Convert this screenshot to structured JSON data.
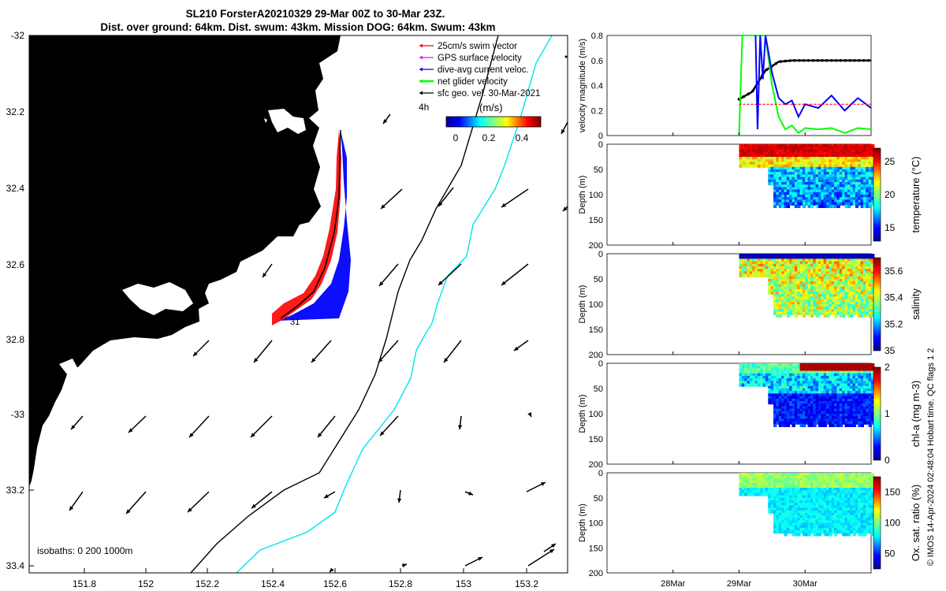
{
  "title_line1": "SL210 ForsterA20210329 29-Mar 00Z to 30-Mar 23Z.",
  "title_line2": "Dist. over ground: 64km. Dist. swum: 43km. Mission DOG: 64km. Swum: 43km",
  "map": {
    "lat_ticks": [
      "-32",
      "32.2",
      "32.4",
      "32.6",
      "32.8",
      "-33",
      "33.2",
      "33.4"
    ],
    "lon_ticks": [
      "151.8",
      "152",
      "152.2",
      "152.4",
      "152.6",
      "152.8",
      "153",
      "153.2"
    ],
    "legend": [
      {
        "label": "25cm/s swim vector",
        "color": "#ff0000"
      },
      {
        "label": "GPS surface velocity",
        "color": "#ff00ff"
      },
      {
        "label": "dive-avg current veloc.",
        "color": "#0000ff"
      },
      {
        "label": "net glider velocity",
        "color": "#00ff00"
      },
      {
        "label": "sfc geo. vel. 30-Mar-2021",
        "color": "#000000"
      }
    ],
    "colorbar_label": "(m/s)",
    "colorbar_prefix": "4h",
    "colorbar_ticks": [
      "0",
      "0.2",
      "0.4"
    ],
    "track_label": "31",
    "isobaths_text": "isobaths: 0   200  1000m",
    "land_color": "#f9c896"
  },
  "chart_data": [
    {
      "type": "line",
      "ylabel": "velocity magnitude (m/s)",
      "ylim": [
        0,
        0.8
      ],
      "yticks": [
        "0",
        "0.2",
        "0.4",
        "0.6",
        "0.8"
      ],
      "series": [
        {
          "color": "#000000",
          "x": [
            29.0,
            29.2,
            29.4,
            29.6,
            29.8,
            30.0,
            30.4,
            30.8,
            31.0
          ],
          "values": [
            0.29,
            0.35,
            0.52,
            0.59,
            0.6,
            0.6,
            0.6,
            0.6,
            0.6
          ]
        },
        {
          "color": "#00ff00",
          "x": [
            29.0,
            29.05,
            29.2,
            29.4,
            29.5,
            29.6,
            29.7,
            29.8,
            29.9,
            30.0,
            30.2,
            30.4,
            30.6,
            30.8,
            31.0
          ],
          "values": [
            0.0,
            0.8,
            0.8,
            0.8,
            0.4,
            0.15,
            0.05,
            0.08,
            0.02,
            0.06,
            0.05,
            0.06,
            0.02,
            0.06,
            0.05
          ]
        },
        {
          "color": "#0000ff",
          "x": [
            29.25,
            29.28,
            29.32,
            29.36,
            29.4,
            29.5,
            29.6,
            29.7,
            29.8,
            29.9,
            30.0,
            30.2,
            30.4,
            30.6,
            30.8,
            31.0
          ],
          "values": [
            0.8,
            0.05,
            0.8,
            0.45,
            0.8,
            0.5,
            0.3,
            0.25,
            0.28,
            0.15,
            0.25,
            0.22,
            0.32,
            0.2,
            0.3,
            0.22
          ]
        },
        {
          "color": "#ff0000",
          "x": [
            29.0,
            31.0
          ],
          "values": [
            0.25,
            0.25
          ]
        }
      ]
    },
    {
      "type": "heatmap",
      "ylabel": "Depth (m)",
      "colorbar_label": "temperature (°C)",
      "clim": [
        13,
        27
      ],
      "cticks": [
        "15",
        "20",
        "25"
      ]
    },
    {
      "type": "heatmap",
      "ylabel": "Depth (m)",
      "colorbar_label": "salinity",
      "clim": [
        35,
        35.7
      ],
      "cticks": [
        "35",
        "35.2",
        "35.4",
        "35.6"
      ]
    },
    {
      "type": "heatmap",
      "ylabel": "Depth (m)",
      "colorbar_label": "chl-a (mg m-3)",
      "clim": [
        0,
        2
      ],
      "cticks": [
        "0",
        "1",
        "2"
      ]
    },
    {
      "type": "heatmap",
      "ylabel": "Depth (m)",
      "colorbar_label": "Ox. sat. ratio (%)",
      "clim": [
        25,
        175
      ],
      "cticks": [
        "50",
        "100",
        "150"
      ]
    }
  ],
  "depth_ticks": [
    "0",
    "50",
    "100",
    "150",
    "200"
  ],
  "time_ticks": [
    "28Mar",
    "29Mar",
    "30Mar"
  ],
  "side_credit": "© IMOS 14-Apr-2024 02:48:04 Hobart time. QC flags 1  2"
}
